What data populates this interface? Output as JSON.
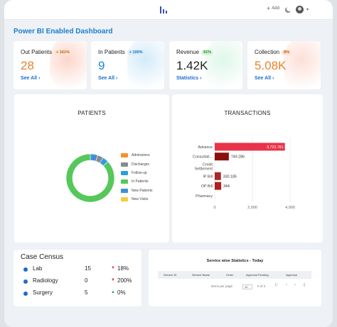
{
  "header": {
    "add_label": "Add",
    "icons": [
      "logo-bars-icon",
      "plus-icon",
      "moon-icon",
      "avatar-icon",
      "chevron-down-icon"
    ]
  },
  "page_title": "Power BI Enabled Dashboard",
  "kpis": [
    {
      "label": "Out Patients",
      "badge": "+ 161%",
      "value": "28",
      "link": "See All",
      "value_color": "#e8822a",
      "badge_bg": "#fde3d0",
      "badge_fg": "#c65a10",
      "deco": "#f9a38a"
    },
    {
      "label": "In Patients",
      "badge": "+ 100%",
      "value": "9",
      "link": "See All",
      "value_color": "#1d8bd1",
      "badge_bg": "#d8eefc",
      "badge_fg": "#1b6fae",
      "deco": "#9fd2f2"
    },
    {
      "label": "Revenue",
      "badge": "91%",
      "value": "1.42K",
      "link": "Statistics",
      "value_color": "#222222",
      "badge_bg": "#d6f5d6",
      "badge_fg": "#2a8a2a",
      "deco": "#b7ecd0"
    },
    {
      "label": "Collection",
      "badge": "8%",
      "value": "5.08K",
      "link": "See All",
      "value_color": "#e8822a",
      "badge_bg": "#fde3d0",
      "badge_fg": "#c65a10",
      "deco": "#f9b8a6"
    }
  ],
  "patients": {
    "title": "PATIENTS",
    "legend": [
      {
        "label": "Admissions",
        "color": "#f3922c"
      },
      {
        "label": "Discharges",
        "color": "#8a8a8a"
      },
      {
        "label": "Follow-up",
        "color": "#2f9ce0"
      },
      {
        "label": "In Patients",
        "color": "#55c85a"
      },
      {
        "label": "New Patients",
        "color": "#3f8fd8"
      },
      {
        "label": "New Visits",
        "color": "#f5cc3a"
      }
    ]
  },
  "chart_data": {
    "type": "bar",
    "orientation": "horizontal",
    "title": "TRANSACTIONS",
    "categories": [
      "Advance",
      "Consultati...",
      "Credit Settlement",
      "IP Bill",
      "OP Bill",
      "Pharmacy"
    ],
    "values": [
      3723.781,
      749.286,
      0,
      330.185,
      344,
      0
    ],
    "data_labels": [
      "3,723.781",
      "749.286",
      "",
      "330.185",
      "344",
      ""
    ],
    "xlim": [
      0,
      4000
    ],
    "xticks": [
      "0",
      "2,000",
      "4,000"
    ],
    "xtick_values": [
      0,
      2000,
      4000
    ],
    "colors": [
      "#e8344a",
      "#8a1010",
      "#8a1010",
      "#a82a2a",
      "#b02020",
      "#8a1010"
    ],
    "grid": true
  },
  "case_census": {
    "title": "Case Census",
    "rows": [
      {
        "name": "Lab",
        "count": "15",
        "arrow": "▼",
        "pct": "18%",
        "arrow_color": "#e03a3a"
      },
      {
        "name": "Radiology",
        "count": "0",
        "arrow": "▼",
        "pct": "200%",
        "arrow_color": "#e03a3a"
      },
      {
        "name": "Surgery",
        "count": "5",
        "arrow": "▲",
        "pct": "0%",
        "arrow_color": "#2aa84a"
      }
    ]
  },
  "service_stats": {
    "title": "Service wise Statistics - Today",
    "columns": [
      "Service ID",
      "Service Name",
      "Order",
      "Approval Pending",
      "Approval"
    ],
    "rows_per_page_label": "Items per page",
    "rows_per_page_value": "10",
    "range_label": "0 of 0",
    "pager_icons": [
      "first-page-icon",
      "prev-page-icon",
      "next-page-icon",
      "last-page-icon"
    ]
  }
}
